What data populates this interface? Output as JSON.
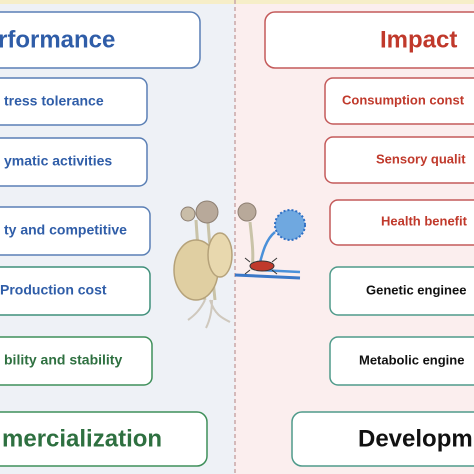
{
  "left": {
    "header": "rformance",
    "items": [
      "tress tolerance",
      "ymatic activities",
      "ty and competitive",
      "Production cost",
      "bility and stability"
    ],
    "footer": "mercialization"
  },
  "right": {
    "header": "Impact",
    "items": [
      "Consumption const",
      "Sensory qualit",
      "Health benefit",
      "Genetic enginee",
      "Metabolic engine"
    ],
    "footer": "Developm"
  }
}
